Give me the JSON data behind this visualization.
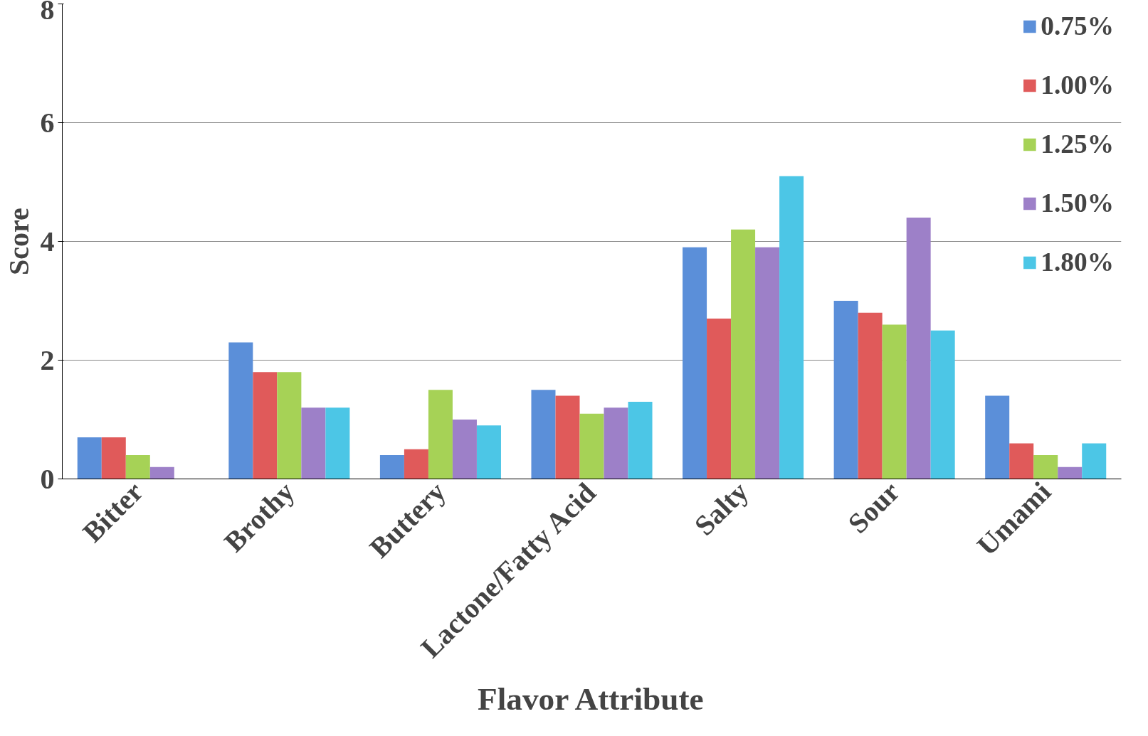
{
  "chart_data": {
    "type": "bar",
    "xlabel": "Flavor Attribute",
    "ylabel": "Score",
    "categories": [
      "Bitter",
      "Brothy",
      "Buttery",
      "Lactone/Fatty Acid",
      "Salty",
      "Sour",
      "Umami"
    ],
    "series": [
      {
        "name": "0.75%",
        "color": "#5b8fd9",
        "values": [
          0.7,
          2.3,
          0.4,
          1.5,
          3.9,
          3.0,
          1.4
        ]
      },
      {
        "name": "1.00%",
        "color": "#e05a5a",
        "values": [
          0.7,
          1.8,
          0.5,
          1.4,
          2.7,
          2.8,
          0.6
        ]
      },
      {
        "name": "1.25%",
        "color": "#a6d256",
        "values": [
          0.4,
          1.8,
          1.5,
          1.1,
          4.2,
          2.6,
          0.4
        ]
      },
      {
        "name": "1.50%",
        "color": "#9d80c8",
        "values": [
          0.2,
          1.2,
          1.0,
          1.2,
          3.9,
          4.4,
          0.2
        ]
      },
      {
        "name": "1.80%",
        "color": "#4cc6e6",
        "values": [
          0,
          1.2,
          0.9,
          1.3,
          5.1,
          2.5,
          0.6
        ]
      }
    ],
    "ylim": [
      0,
      8
    ],
    "yticks": [
      0,
      2,
      4,
      6,
      8
    ],
    "grid": "y",
    "legend": "top right"
  }
}
